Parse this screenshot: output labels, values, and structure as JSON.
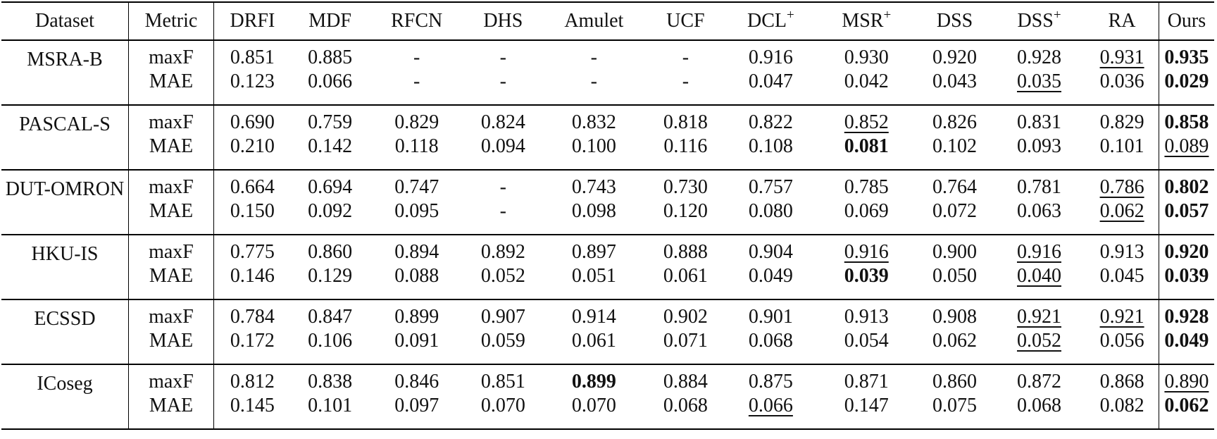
{
  "columns": [
    "Dataset",
    "Metric",
    "DRFI",
    "MDF",
    "RFCN",
    "DHS",
    "Amulet",
    "UCF",
    "DCL",
    "MSR",
    "DSS",
    "DSS",
    "RA",
    "Ours"
  ],
  "superscripts": {
    "dcl": "+",
    "msr": "+",
    "dss2": "+"
  },
  "rows": [
    {
      "dataset": "MSRA-B",
      "maxF": [
        "0.851",
        "0.885",
        "-",
        "-",
        "-",
        "-",
        "0.916",
        "0.930",
        "0.920",
        "0.928",
        "0.931",
        "0.935"
      ],
      "MAE": [
        "0.123",
        "0.066",
        "-",
        "-",
        "-",
        "-",
        "0.047",
        "0.042",
        "0.043",
        "0.035",
        "0.036",
        "0.029"
      ]
    },
    {
      "dataset": "PASCAL-S",
      "maxF": [
        "0.690",
        "0.759",
        "0.829",
        "0.824",
        "0.832",
        "0.818",
        "0.822",
        "0.852",
        "0.826",
        "0.831",
        "0.829",
        "0.858"
      ],
      "MAE": [
        "0.210",
        "0.142",
        "0.118",
        "0.094",
        "0.100",
        "0.116",
        "0.108",
        "0.081",
        "0.102",
        "0.093",
        "0.101",
        "0.089"
      ]
    },
    {
      "dataset": "DUT-OMRON",
      "maxF": [
        "0.664",
        "0.694",
        "0.747",
        "-",
        "0.743",
        "0.730",
        "0.757",
        "0.785",
        "0.764",
        "0.781",
        "0.786",
        "0.802"
      ],
      "MAE": [
        "0.150",
        "0.092",
        "0.095",
        "-",
        "0.098",
        "0.120",
        "0.080",
        "0.069",
        "0.072",
        "0.063",
        "0.062",
        "0.057"
      ]
    },
    {
      "dataset": "HKU-IS",
      "maxF": [
        "0.775",
        "0.860",
        "0.894",
        "0.892",
        "0.897",
        "0.888",
        "0.904",
        "0.916",
        "0.900",
        "0.916",
        "0.913",
        "0.920"
      ],
      "MAE": [
        "0.146",
        "0.129",
        "0.088",
        "0.052",
        "0.051",
        "0.061",
        "0.049",
        "0.039",
        "0.050",
        "0.040",
        "0.045",
        "0.039"
      ]
    },
    {
      "dataset": "ECSSD",
      "maxF": [
        "0.784",
        "0.847",
        "0.899",
        "0.907",
        "0.914",
        "0.902",
        "0.901",
        "0.913",
        "0.908",
        "0.921",
        "0.921",
        "0.928"
      ],
      "MAE": [
        "0.172",
        "0.106",
        "0.091",
        "0.059",
        "0.061",
        "0.071",
        "0.068",
        "0.054",
        "0.062",
        "0.052",
        "0.056",
        "0.049"
      ]
    },
    {
      "dataset": "ICoseg",
      "maxF": [
        "0.812",
        "0.838",
        "0.846",
        "0.851",
        "0.899",
        "0.884",
        "0.875",
        "0.871",
        "0.860",
        "0.872",
        "0.868",
        "0.890"
      ],
      "MAE": [
        "0.145",
        "0.101",
        "0.097",
        "0.070",
        "0.070",
        "0.068",
        "0.066",
        "0.147",
        "0.075",
        "0.068",
        "0.082",
        "0.062"
      ]
    }
  ],
  "metric_labels": {
    "maxF": "maxF",
    "MAE": "MAE"
  }
}
